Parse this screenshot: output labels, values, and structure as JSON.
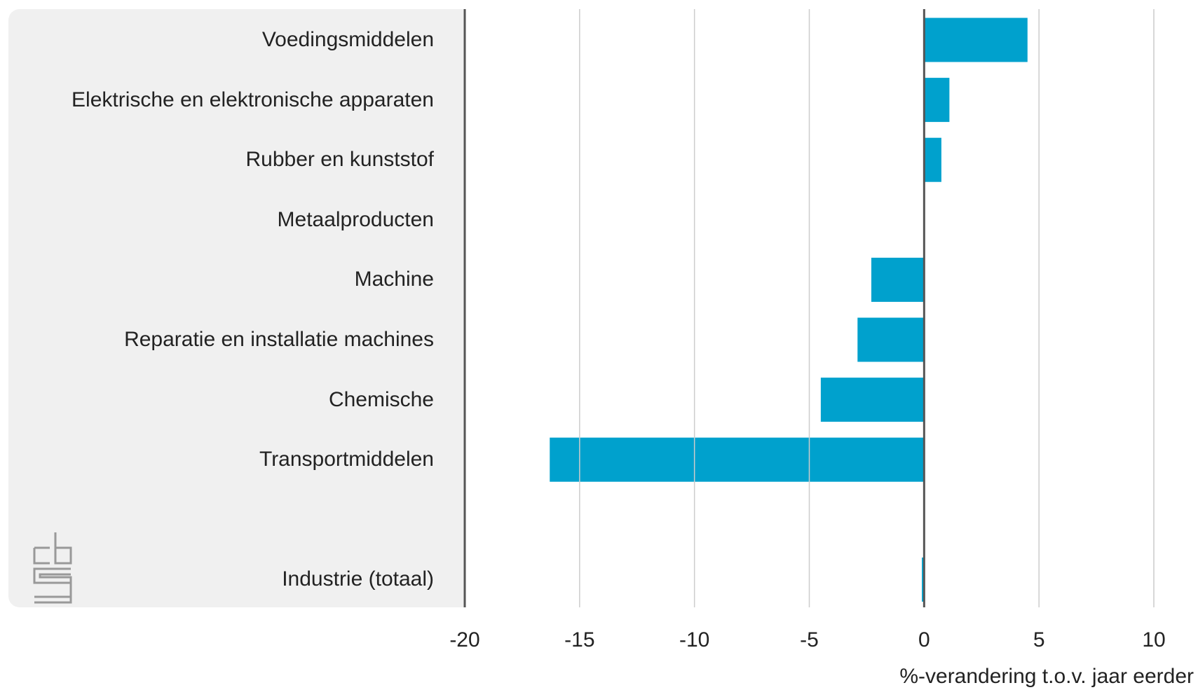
{
  "chart_data": {
    "type": "barh",
    "x_label": "%-verandering t.o.v. jaar eerder",
    "categories": [
      "Voedingsmiddelen",
      "Elektrische en elektronische apparaten",
      "Rubber en kunststof",
      "Metaalproducten",
      "Machine",
      "Reparatie en installatie machines",
      "Chemische",
      "Transportmiddelen",
      null,
      "Industrie (totaal)"
    ],
    "values": [
      4.5,
      1.1,
      0.75,
      0,
      -2.3,
      -2.9,
      -4.5,
      -16.3,
      null,
      -0.1
    ],
    "color": "#00a1cd",
    "xlim": [
      -20,
      10
    ],
    "xticks": [
      -20,
      -15,
      -10,
      -5,
      0,
      5,
      10
    ],
    "grid": true
  }
}
